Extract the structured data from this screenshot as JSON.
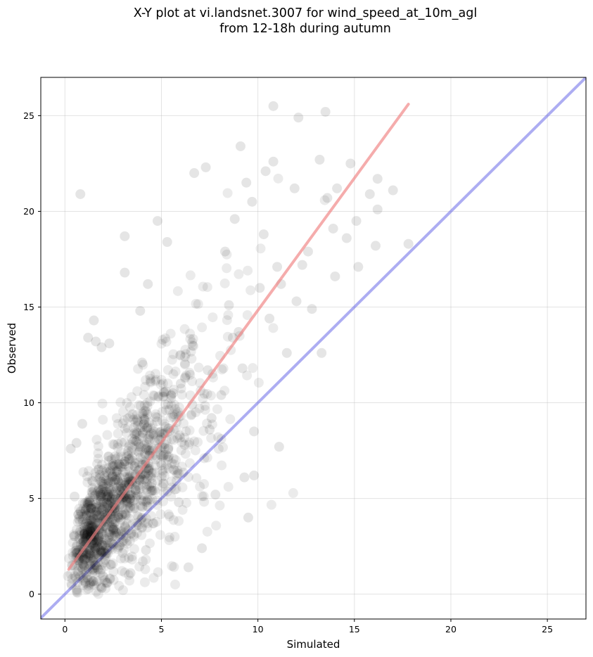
{
  "chart_data": {
    "type": "scatter",
    "title_line1": "X-Y plot at vi.landsnet.3007 for wind_speed_at_10m_agl",
    "title_line2": "from 12-18h during autumn",
    "xlabel": "Simulated",
    "ylabel": "Observed",
    "xlim": [
      -1.25,
      27
    ],
    "ylim": [
      -1.3,
      27
    ],
    "xticks": [
      0,
      5,
      10,
      15,
      20,
      25
    ],
    "yticks": [
      0,
      5,
      10,
      15,
      20,
      25
    ],
    "grid": true,
    "point_color": "#000000",
    "regression_line": {
      "x": [
        0.2,
        17.8
      ],
      "y": [
        1.3,
        25.6
      ],
      "color": "#f08080"
    },
    "identity_line": {
      "x": [
        -1.25,
        27
      ],
      "y": [
        -1.25,
        27
      ],
      "color": "#6a6ae8"
    },
    "points": {
      "x": [
        0.8,
        10.8,
        12.1,
        13.5,
        9.1,
        9.4,
        10.4,
        10.8,
        11.9,
        13.2,
        13.6,
        14.8,
        15.8,
        17.0,
        12.3,
        14.0,
        16.1,
        7.3,
        8.8,
        6.7,
        3.1,
        3.1,
        4.8,
        5.3,
        4.3,
        3.9,
        16.2,
        17.8,
        9.8,
        11.1,
        9.5,
        6.4,
        5.9,
        4.2,
        7.8,
        9.8,
        9.3,
        7.1,
        1.6,
        1.2,
        1.5,
        0.6,
        0.9,
        1.9,
        2.3,
        14.1,
        15.1,
        12.6,
        11.0,
        10.1,
        8.5,
        14.6,
        15.2,
        16.2,
        1.4,
        2.8,
        4.5,
        7.6,
        8.1,
        9.2,
        8.7,
        12.0,
        11.5,
        13.3,
        0.4,
        2.2,
        3.4,
        3.8,
        4.2,
        0.3,
        0.5,
        6.0,
        6.6,
        7.4,
        7.5,
        9.0,
        10.6,
        11.2,
        10.3,
        12.8,
        13.9,
        6.2,
        5.1,
        5.6,
        4.0,
        8.3,
        9.7,
        3.5,
        2.6,
        1.0
      ],
      "y": [
        20.9,
        25.5,
        24.9,
        25.2,
        23.4,
        21.5,
        22.1,
        22.6,
        21.2,
        22.7,
        20.7,
        22.5,
        20.9,
        21.1,
        17.2,
        16.6,
        18.2,
        22.3,
        19.6,
        22.0,
        18.7,
        16.8,
        19.5,
        18.4,
        16.2,
        14.8,
        20.1,
        18.3,
        8.5,
        7.7,
        4.0,
        1.4,
        4.8,
        2.3,
        5.2,
        6.2,
        6.1,
        2.4,
        13.2,
        13.4,
        14.3,
        7.9,
        8.9,
        12.9,
        13.1,
        21.2,
        19.5,
        17.9,
        17.1,
        16.0,
        15.1,
        18.6,
        17.1,
        21.7,
        2.6,
        4.0,
        5.8,
        9.2,
        10.4,
        11.8,
        13.4,
        15.3,
        12.6,
        12.6,
        1.5,
        0.6,
        1.1,
        3.6,
        6.3,
        7.6,
        5.1,
        11.0,
        9.9,
        11.7,
        8.6,
        13.7,
        14.4,
        16.2,
        18.8,
        14.9,
        19.1,
        7.8,
        8.4,
        10.5,
        12.1,
        17.9,
        20.5,
        9.4,
        7.2,
        3.1
      ]
    }
  }
}
